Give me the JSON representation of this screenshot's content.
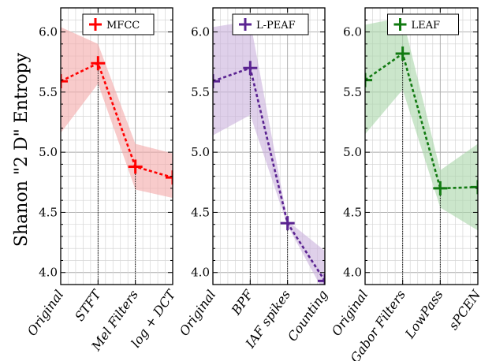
{
  "figure": {
    "ylabel": "Shanon \"2 D\" Entropy"
  },
  "chart_data": [
    {
      "type": "line",
      "color": "#ff0000",
      "band_color": "#f4a8a8",
      "legend": "MFCC",
      "categories": [
        "Original",
        "STFT",
        "Mel Filters",
        "log + DCT"
      ],
      "values": [
        5.59,
        5.74,
        4.88,
        4.79
      ],
      "band_upper": [
        6.04,
        5.9,
        5.07,
        4.99
      ],
      "band_lower": [
        5.16,
        5.57,
        4.69,
        4.62
      ],
      "ylim": [
        3.9,
        6.2
      ],
      "yticks": [
        "4.0",
        "4.5",
        "5.0",
        "5.5",
        "6.0"
      ],
      "grid": true,
      "legend_position": "top-center"
    },
    {
      "type": "line",
      "color": "#5a2391",
      "band_color": "#c9b1dc",
      "legend": "L-PEAF",
      "categories": [
        "Original",
        "BPF",
        "IAF spikes",
        "Counting"
      ],
      "values": [
        5.59,
        5.7,
        4.41,
        3.93
      ],
      "band_upper": [
        6.04,
        6.09,
        4.43,
        4.18
      ],
      "band_lower": [
        5.14,
        5.31,
        4.39,
        3.82
      ],
      "ylim": [
        3.9,
        6.2
      ],
      "yticks": [
        "4.0",
        "4.5",
        "5.0",
        "5.5",
        "6.0"
      ],
      "grid": true,
      "legend_position": "top-center"
    },
    {
      "type": "line",
      "color": "#117a11",
      "band_color": "#a9d6a9",
      "legend": "LEAF",
      "categories": [
        "Original",
        "Gabor Filters",
        "LowPass",
        "sPCEN"
      ],
      "values": [
        5.6,
        5.82,
        4.7,
        4.71
      ],
      "band_upper": [
        6.06,
        6.12,
        4.85,
        5.07
      ],
      "band_lower": [
        5.15,
        5.52,
        4.54,
        4.35
      ],
      "ylim": [
        3.9,
        6.2
      ],
      "yticks": [
        "4.0",
        "4.5",
        "5.0",
        "5.5",
        "6.0"
      ],
      "grid": true,
      "legend_position": "top-center"
    }
  ]
}
